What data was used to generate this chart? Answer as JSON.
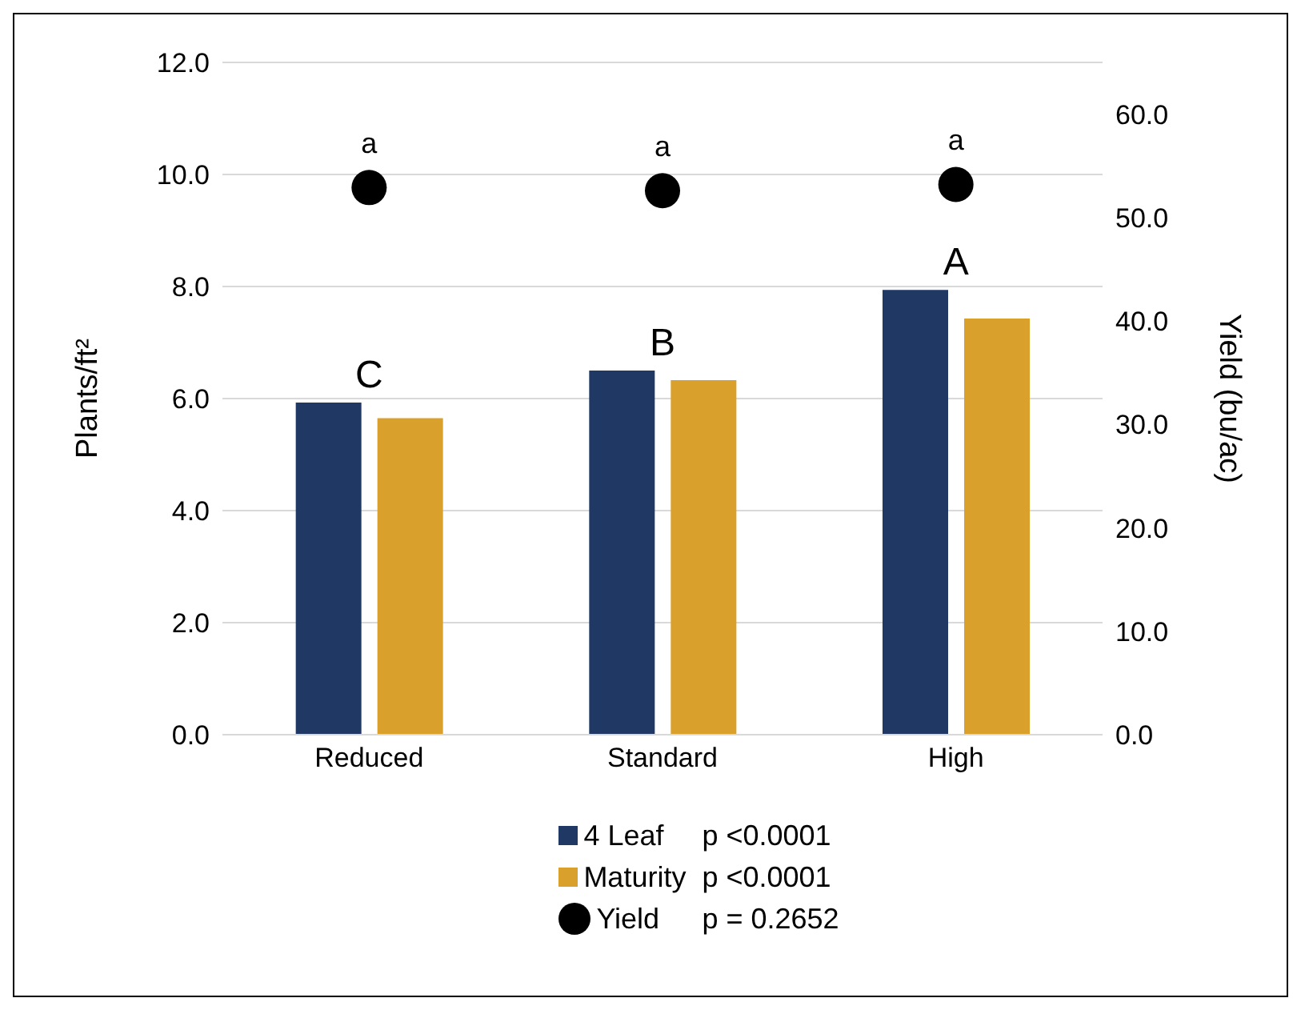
{
  "chart_data": {
    "type": "bar",
    "ylabel": "Plants/ft²",
    "y2label": "Yield (bu/ac)",
    "categories": [
      "Reduced",
      "Standard",
      "High"
    ],
    "series": [
      {
        "name": "4 Leaf",
        "color": "#1f3864",
        "values": [
          5.93,
          6.5,
          7.94
        ]
      },
      {
        "name": "Maturity",
        "color": "#d9a02c",
        "values": [
          5.65,
          6.33,
          7.43
        ]
      },
      {
        "name": "Yield",
        "type": "scatter",
        "axis": "y2",
        "color": "#000000",
        "values": [
          52.9,
          52.6,
          53.2
        ]
      }
    ],
    "ylim": [
      0,
      12
    ],
    "yticks": [
      {
        "value": 0,
        "label": "0.0"
      },
      {
        "value": 2,
        "label": "2.0"
      },
      {
        "value": 4,
        "label": "4.0"
      },
      {
        "value": 6,
        "label": "6.0"
      },
      {
        "value": 8,
        "label": "8.0"
      },
      {
        "value": 10,
        "label": "10.0"
      },
      {
        "value": 12,
        "label": "12.0"
      }
    ],
    "y2lim": [
      0,
      65
    ],
    "y2ticks": [
      {
        "value": 0,
        "label": "0.0"
      },
      {
        "value": 10,
        "label": "10.0"
      },
      {
        "value": 20,
        "label": "20.0"
      },
      {
        "value": 30,
        "label": "30.0"
      },
      {
        "value": 40,
        "label": "40.0"
      },
      {
        "value": 50,
        "label": "50.0"
      },
      {
        "value": 60,
        "label": "60.0"
      }
    ],
    "annotations": [
      "C",
      "B",
      "A",
      "a",
      "a",
      "a",
      "p <0.0001",
      "p <0.0001",
      "p = 0.2652"
    ],
    "grid": "y",
    "legend": "bottom",
    "marker": "circle"
  }
}
